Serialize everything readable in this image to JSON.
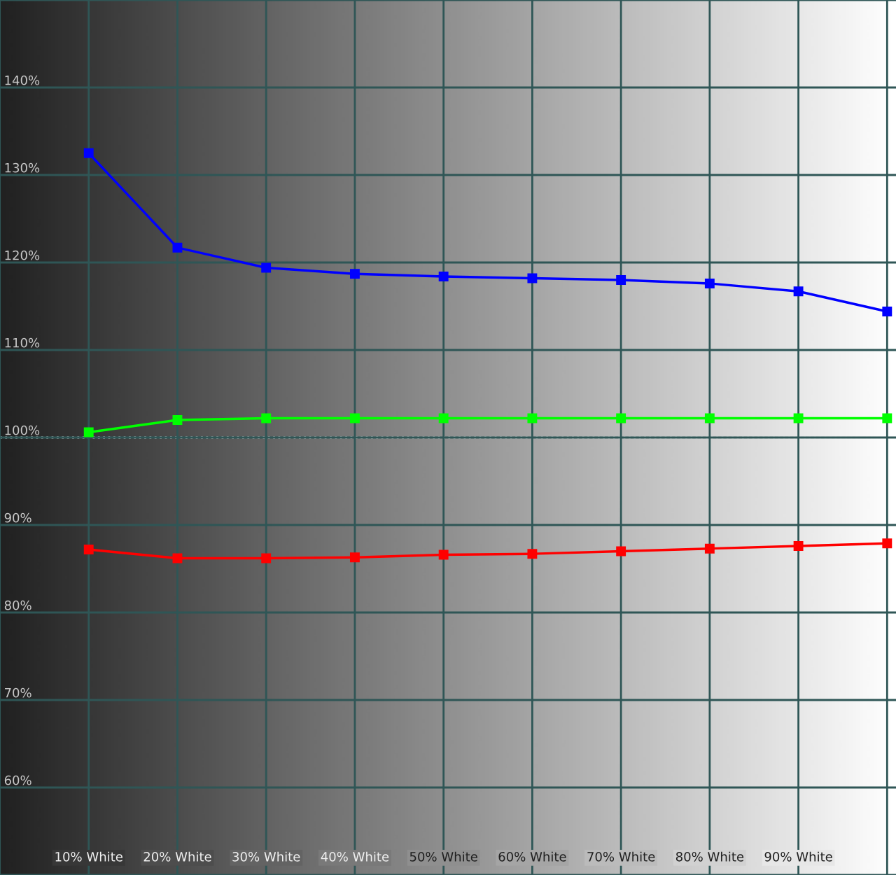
{
  "chart_data": {
    "type": "line",
    "categories": [
      "10% White",
      "20% White",
      "30% White",
      "40% White",
      "50% White",
      "60% White",
      "70% White",
      "80% White",
      "90% White",
      null
    ],
    "series": [
      {
        "color": "#0000ff",
        "values": [
          132.5,
          121.7,
          119.4,
          118.7,
          118.4,
          118.2,
          118.0,
          117.6,
          116.7,
          114.4
        ]
      },
      {
        "color": "#00ff00",
        "values": [
          100.6,
          102.0,
          102.2,
          102.2,
          102.2,
          102.2,
          102.2,
          102.2,
          102.2,
          102.2
        ]
      },
      {
        "color": "#ff0000",
        "values": [
          87.2,
          86.2,
          86.2,
          86.3,
          86.6,
          86.7,
          87.0,
          87.3,
          87.6,
          87.9
        ]
      }
    ],
    "ylim": [
      50,
      150
    ],
    "yticks": [
      {
        "value": 50,
        "label": null
      },
      {
        "value": 60,
        "label": "60%"
      },
      {
        "value": 70,
        "label": "70%"
      },
      {
        "value": 80,
        "label": "80%"
      },
      {
        "value": 90,
        "label": "90%"
      },
      {
        "value": 100,
        "label": "100%"
      },
      {
        "value": 110,
        "label": "110%"
      },
      {
        "value": 120,
        "label": "120%"
      },
      {
        "value": 130,
        "label": "130%"
      },
      {
        "value": 140,
        "label": "140%"
      },
      {
        "value": 150,
        "label": null
      }
    ],
    "ref_lines": [
      {
        "axis": "y",
        "value": 100,
        "color": "#ffffff",
        "line_style": "dotted"
      }
    ],
    "grid": true,
    "marker": "square",
    "line_style": "solid"
  }
}
